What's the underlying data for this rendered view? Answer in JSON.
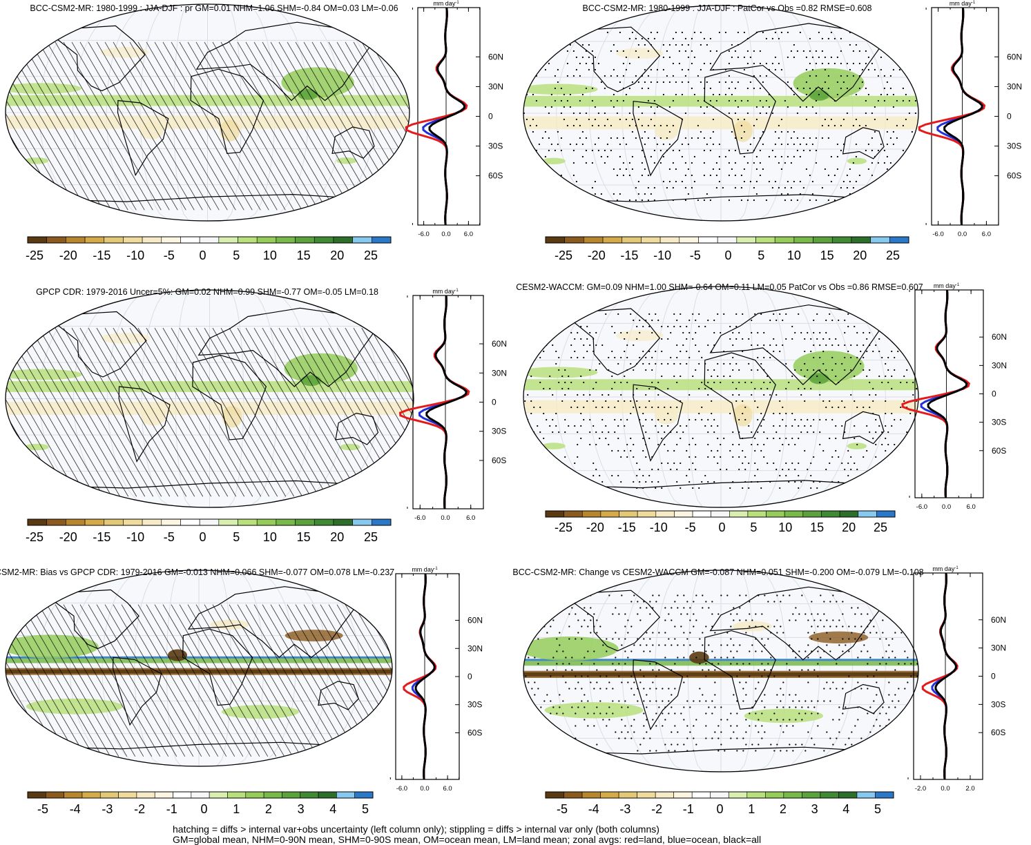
{
  "scales": {
    "abs": [
      "-25",
      "-20",
      "-15",
      "-10",
      "-5",
      "0",
      "5",
      "10",
      "15",
      "20",
      "25"
    ],
    "diff": [
      "-5",
      "-4",
      "-3",
      "-2",
      "-1",
      "0",
      "1",
      "2",
      "3",
      "4",
      "5"
    ]
  },
  "palette": [
    "#5a3a12",
    "#8a5a1f",
    "#b8862e",
    "#d4aa4a",
    "#e3c878",
    "#efdc9c",
    "#f6ebc6",
    "#fbf5e2",
    "#ffffff",
    "#f6f6f6",
    "#d9efb0",
    "#b9e07c",
    "#95cc5a",
    "#78b94a",
    "#5ca23c",
    "#3f8a33",
    "#2c6e2a",
    "#87c8ee",
    "#2c78c8"
  ],
  "lat_labels": [
    "60N",
    "30N",
    "0",
    "30S",
    "60S"
  ],
  "unit": "mm day",
  "panels": [
    {
      "id": "p1",
      "title": "BCC-CSM2-MR: 1980-1999 : JJA-DJF : pr GM=0.01 NHM=1.06 SHM=-0.84 OM=0.03 LM=-0.06",
      "scale": "abs",
      "xticks": [
        "-6.0",
        "0.0",
        "6.0"
      ],
      "hatch": true,
      "stipple": false
    },
    {
      "id": "p2",
      "title": "BCC-CSM2-MR: 1980-1999 : JJA-DJF : PatCor vs Obs =0.82 RMSE=0.608",
      "scale": "abs",
      "xticks": [
        "-6.0",
        "0.0",
        "6.0"
      ],
      "hatch": false,
      "stipple": true
    },
    {
      "id": "p3",
      "title": "GPCP CDR: 1979-2016 Uncer=5%: GM=0.02 NHM=0.99 SHM=-0.77 OM=-0.05 LM=0.18",
      "scale": "abs",
      "xticks": [
        "-6.0",
        "0.0",
        "6.0"
      ],
      "hatch": true,
      "stipple": false
    },
    {
      "id": "p4",
      "title": "CESM2-WACCM: GM=0.09 NHM=1.00 SHM=-0.64 OM=0.11 LM=0.05 PatCor vs Obs =0.86 RMSE=0.607",
      "scale": "abs",
      "xticks": [
        "-6.0",
        "0.0",
        "6.0"
      ],
      "hatch": false,
      "stipple": true
    },
    {
      "id": "p5",
      "title": "-CSM2-MR: Bias vs GPCP CDR: 1979-2016 GM=-0.013 NHM=0.066 SHM=-0.077 OM=0.078 LM=-0.237",
      "scale": "diff",
      "xticks": [
        "-6.0",
        "0.0",
        "6.0"
      ],
      "hatch": true,
      "stipple": false
    },
    {
      "id": "p6",
      "title": "BCC-CSM2-MR: Change vs CESM2-WACCM GM=-0.087 NHM=0.051 SHM=-0.200 OM=-0.079 LM=-0.108",
      "scale": "diff",
      "xticks": [
        "-2.0",
        "0.0",
        "2.0"
      ],
      "hatch": false,
      "stipple": true
    }
  ],
  "footnote": [
    "hatching = diffs > internal var+obs uncertainty (left column only); stippling = diffs > internal var only (both columns)",
    "GM=global mean, NHM=0-90N mean, SHM=0-90S mean, OM=ocean mean, LM=land mean; zonal avgs: red=land, blue=ocean, black=all"
  ]
}
